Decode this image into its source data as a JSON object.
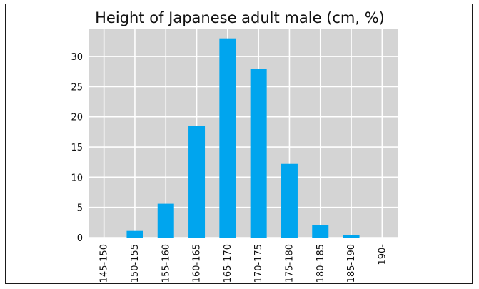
{
  "chart_data": {
    "type": "bar",
    "title": "Height of Japanese adult male (cm, %)",
    "xlabel": "",
    "ylabel": "",
    "categories": [
      "145-150",
      "150-155",
      "155-160",
      "160-165",
      "165-170",
      "170-175",
      "175-180",
      "180-185",
      "185-190",
      "190-"
    ],
    "values": [
      0,
      1.1,
      5.6,
      18.5,
      33.0,
      28.0,
      12.2,
      2.1,
      0.4,
      0
    ],
    "ylim": [
      0,
      34.5
    ],
    "yticks": [
      0,
      5,
      10,
      15,
      20,
      25,
      30
    ],
    "grid": true,
    "bar_color": "#00a5ee",
    "plot_background": "#d4d4d4",
    "grid_color": "#ffffff"
  }
}
